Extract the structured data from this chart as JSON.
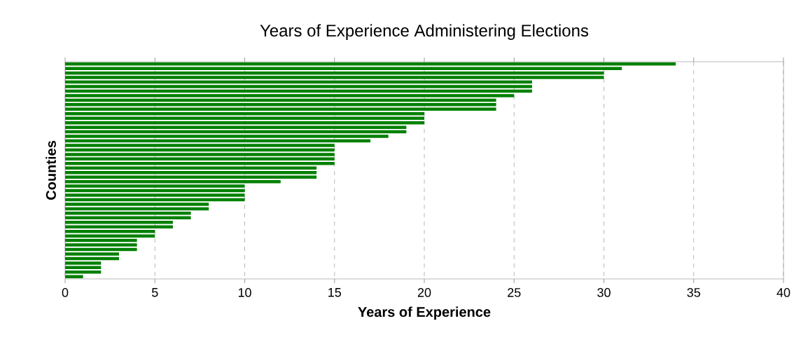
{
  "chart_data": {
    "type": "bar",
    "orientation": "horizontal",
    "title": "Years of Experience Administering Elections",
    "xlabel": "Years of Experience",
    "ylabel": "Counties",
    "categories": [
      null,
      null,
      null,
      null,
      null,
      null,
      null,
      null,
      null,
      null,
      null,
      null,
      null,
      null,
      null,
      null,
      null,
      null,
      null,
      null,
      null,
      null,
      null,
      null,
      null,
      null,
      null,
      null,
      null,
      null,
      null,
      null,
      null,
      null,
      null,
      null,
      null,
      null,
      null,
      null,
      null,
      null,
      null,
      null,
      null,
      null,
      null,
      null
    ],
    "values": [
      34,
      31,
      30,
      30,
      26,
      26,
      26,
      25,
      24,
      24,
      24,
      20,
      20,
      20,
      19,
      19,
      18,
      17,
      15,
      15,
      15,
      15,
      15,
      14,
      14,
      14,
      12,
      10,
      10,
      10,
      10,
      8,
      8,
      7,
      7,
      6,
      6,
      5,
      5,
      4,
      4,
      4,
      3,
      3,
      2,
      2,
      2,
      1
    ],
    "color": "#008000",
    "xlim": [
      0,
      40
    ],
    "xticks": [
      0,
      5,
      10,
      15,
      20,
      25,
      30,
      35,
      40
    ],
    "grid": "x"
  }
}
